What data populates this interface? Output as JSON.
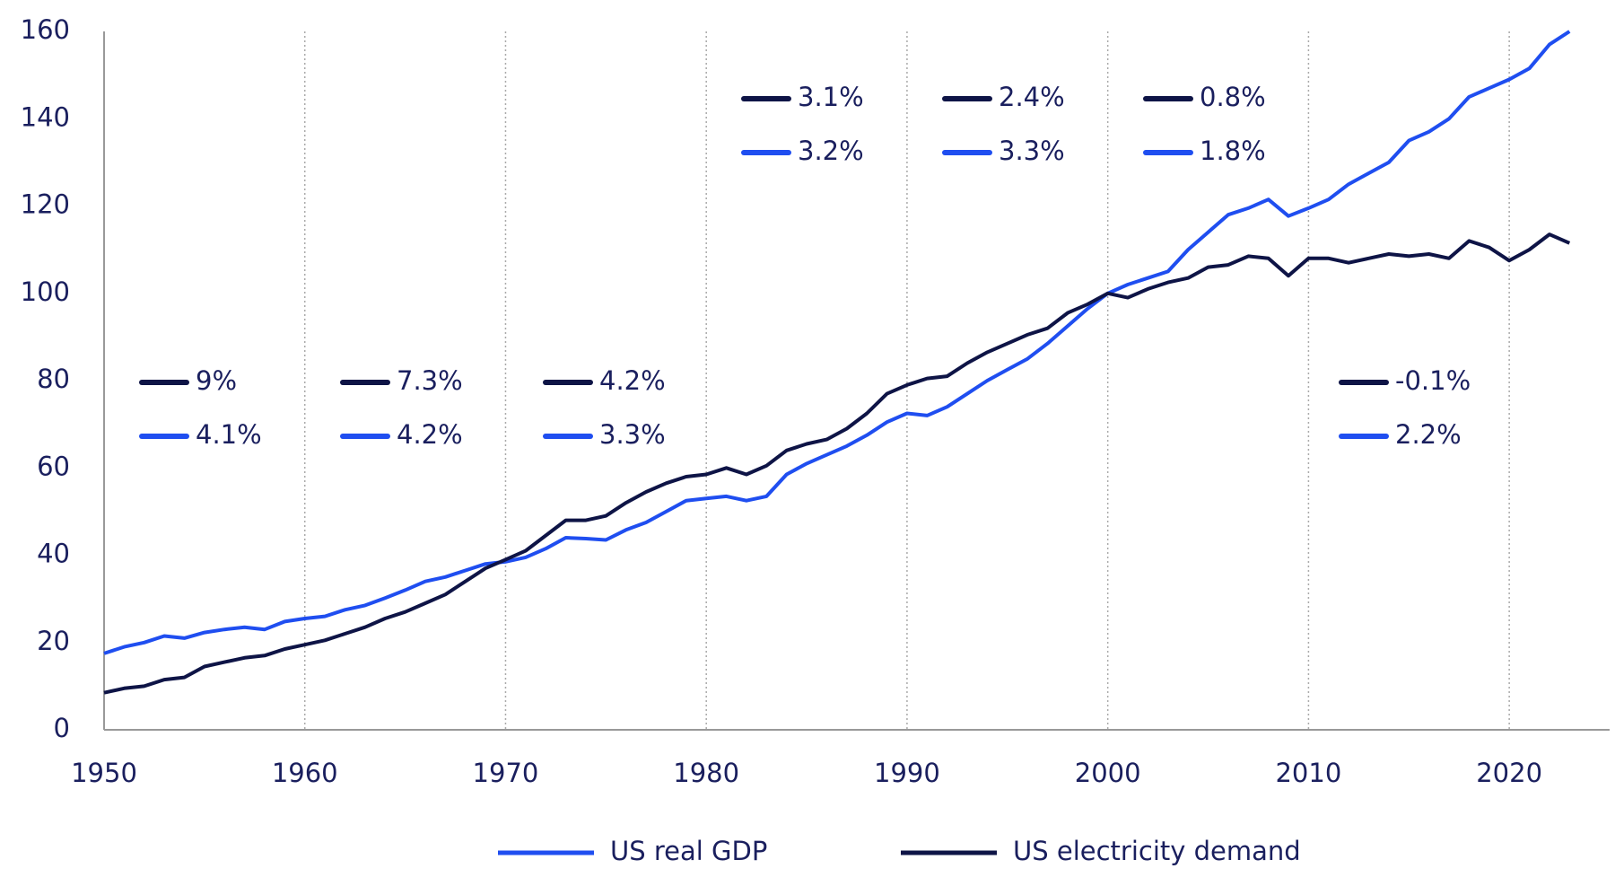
{
  "chart_data": {
    "type": "line",
    "x": [
      1950,
      1951,
      1952,
      1953,
      1954,
      1955,
      1956,
      1957,
      1958,
      1959,
      1960,
      1961,
      1962,
      1963,
      1964,
      1965,
      1966,
      1967,
      1968,
      1969,
      1970,
      1971,
      1972,
      1973,
      1974,
      1975,
      1976,
      1977,
      1978,
      1979,
      1980,
      1981,
      1982,
      1983,
      1984,
      1985,
      1986,
      1987,
      1988,
      1989,
      1990,
      1991,
      1992,
      1993,
      1994,
      1995,
      1996,
      1997,
      1998,
      1999,
      2000,
      2001,
      2002,
      2003,
      2004,
      2005,
      2006,
      2007,
      2008,
      2009,
      2010,
      2011,
      2012,
      2013,
      2014,
      2015,
      2016,
      2017,
      2018,
      2019,
      2020,
      2021,
      2022,
      2023
    ],
    "series": [
      {
        "name": "US real GDP",
        "color": "#1f4ef0",
        "values": [
          17.5,
          19,
          20,
          21.5,
          21,
          22.3,
          23,
          23.5,
          23,
          24.8,
          25.5,
          26,
          27.5,
          28.5,
          30.2,
          32,
          34,
          35,
          36.5,
          38,
          38.5,
          39.5,
          41.5,
          44,
          43.8,
          43.5,
          45.8,
          47.5,
          50,
          52.5,
          53,
          53.5,
          52.5,
          53.5,
          58.5,
          61,
          63,
          65,
          67.5,
          70.5,
          72.5,
          72,
          74,
          77,
          80,
          82.5,
          85,
          88.5,
          92.5,
          96.5,
          100,
          102,
          103.5,
          105,
          110,
          114,
          118,
          119.5,
          121.5,
          117.7,
          119.5,
          121.5,
          125,
          127.5,
          130,
          135,
          137,
          140,
          145,
          147,
          149,
          151.5,
          157,
          160
        ]
      },
      {
        "name": "US electricity demand",
        "color": "#0e1446",
        "values": [
          8.5,
          9.5,
          10,
          11.5,
          12,
          14.5,
          15.5,
          16.5,
          17,
          18.5,
          19.5,
          20.5,
          22,
          23.5,
          25.5,
          27,
          29,
          31,
          34,
          37,
          39,
          41,
          44.5,
          48,
          48,
          49,
          52,
          54.5,
          56.5,
          58,
          58.5,
          60,
          58.5,
          60.5,
          64,
          65.5,
          66.5,
          69,
          72.5,
          77,
          79,
          80.5,
          81,
          84,
          86.5,
          88.5,
          90.5,
          92,
          95.5,
          97.5,
          100,
          99,
          101,
          102.5,
          103.5,
          106,
          106.5,
          108.5,
          108,
          104,
          108,
          108,
          107,
          108,
          109,
          108.5,
          109,
          108,
          112,
          110.5,
          107.5,
          110,
          113.5,
          111.5
        ]
      }
    ],
    "xlim": [
      1950,
      2025
    ],
    "xticks": [
      1950,
      1960,
      1970,
      1980,
      1990,
      2000,
      2010,
      2020
    ],
    "ylim": [
      0,
      160
    ],
    "yticks": [
      0,
      20,
      40,
      60,
      80,
      100,
      120,
      140,
      160
    ],
    "grid": true,
    "annotations": [
      {
        "electricity_demand": "9%",
        "real_gdp": "4.1%"
      },
      {
        "electricity_demand": "7.3%",
        "real_gdp": "4.2%"
      },
      {
        "electricity_demand": "4.2%",
        "real_gdp": "3.3%"
      },
      {
        "electricity_demand": "3.1%",
        "real_gdp": "3.2%"
      },
      {
        "electricity_demand": "2.4%",
        "real_gdp": "3.3%"
      },
      {
        "electricity_demand": "0.8%",
        "real_gdp": "1.8%"
      },
      {
        "electricity_demand": "-0.1%",
        "real_gdp": "2.2%"
      }
    ],
    "legend": "bottom"
  }
}
